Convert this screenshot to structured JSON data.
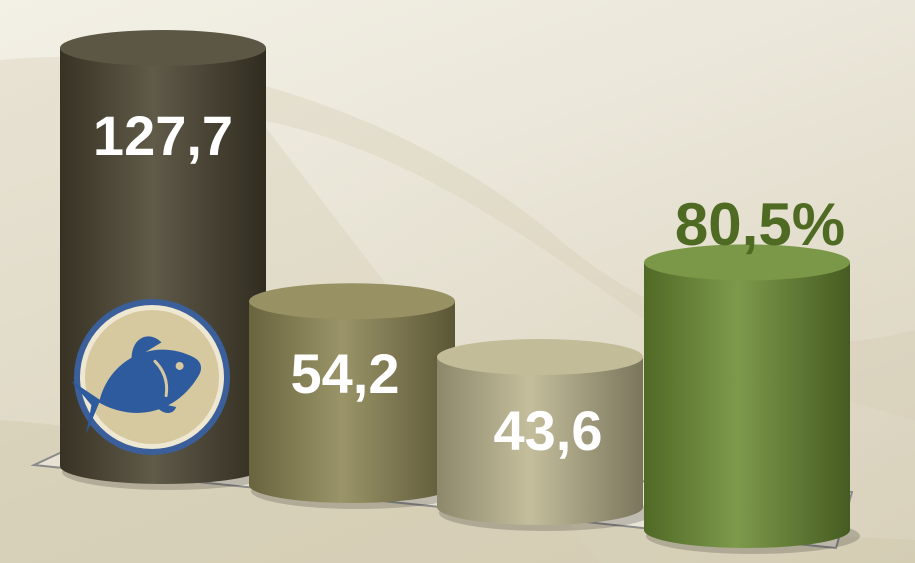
{
  "chart_data": {
    "type": "bar",
    "categories": [
      "",
      "",
      "",
      ""
    ],
    "values": [
      127.7,
      54.2,
      43.6,
      80.5
    ],
    "labels": [
      "127,7",
      "54,2",
      "43,6",
      "80,5%"
    ],
    "colors": [
      "#4a4330",
      "#8c8553",
      "#bcb58e",
      "#6b8c33"
    ],
    "label_colors": [
      "#ffffff",
      "#ffffff",
      "#ffffff",
      "#4f6b23"
    ],
    "icon": "fish-icon"
  }
}
